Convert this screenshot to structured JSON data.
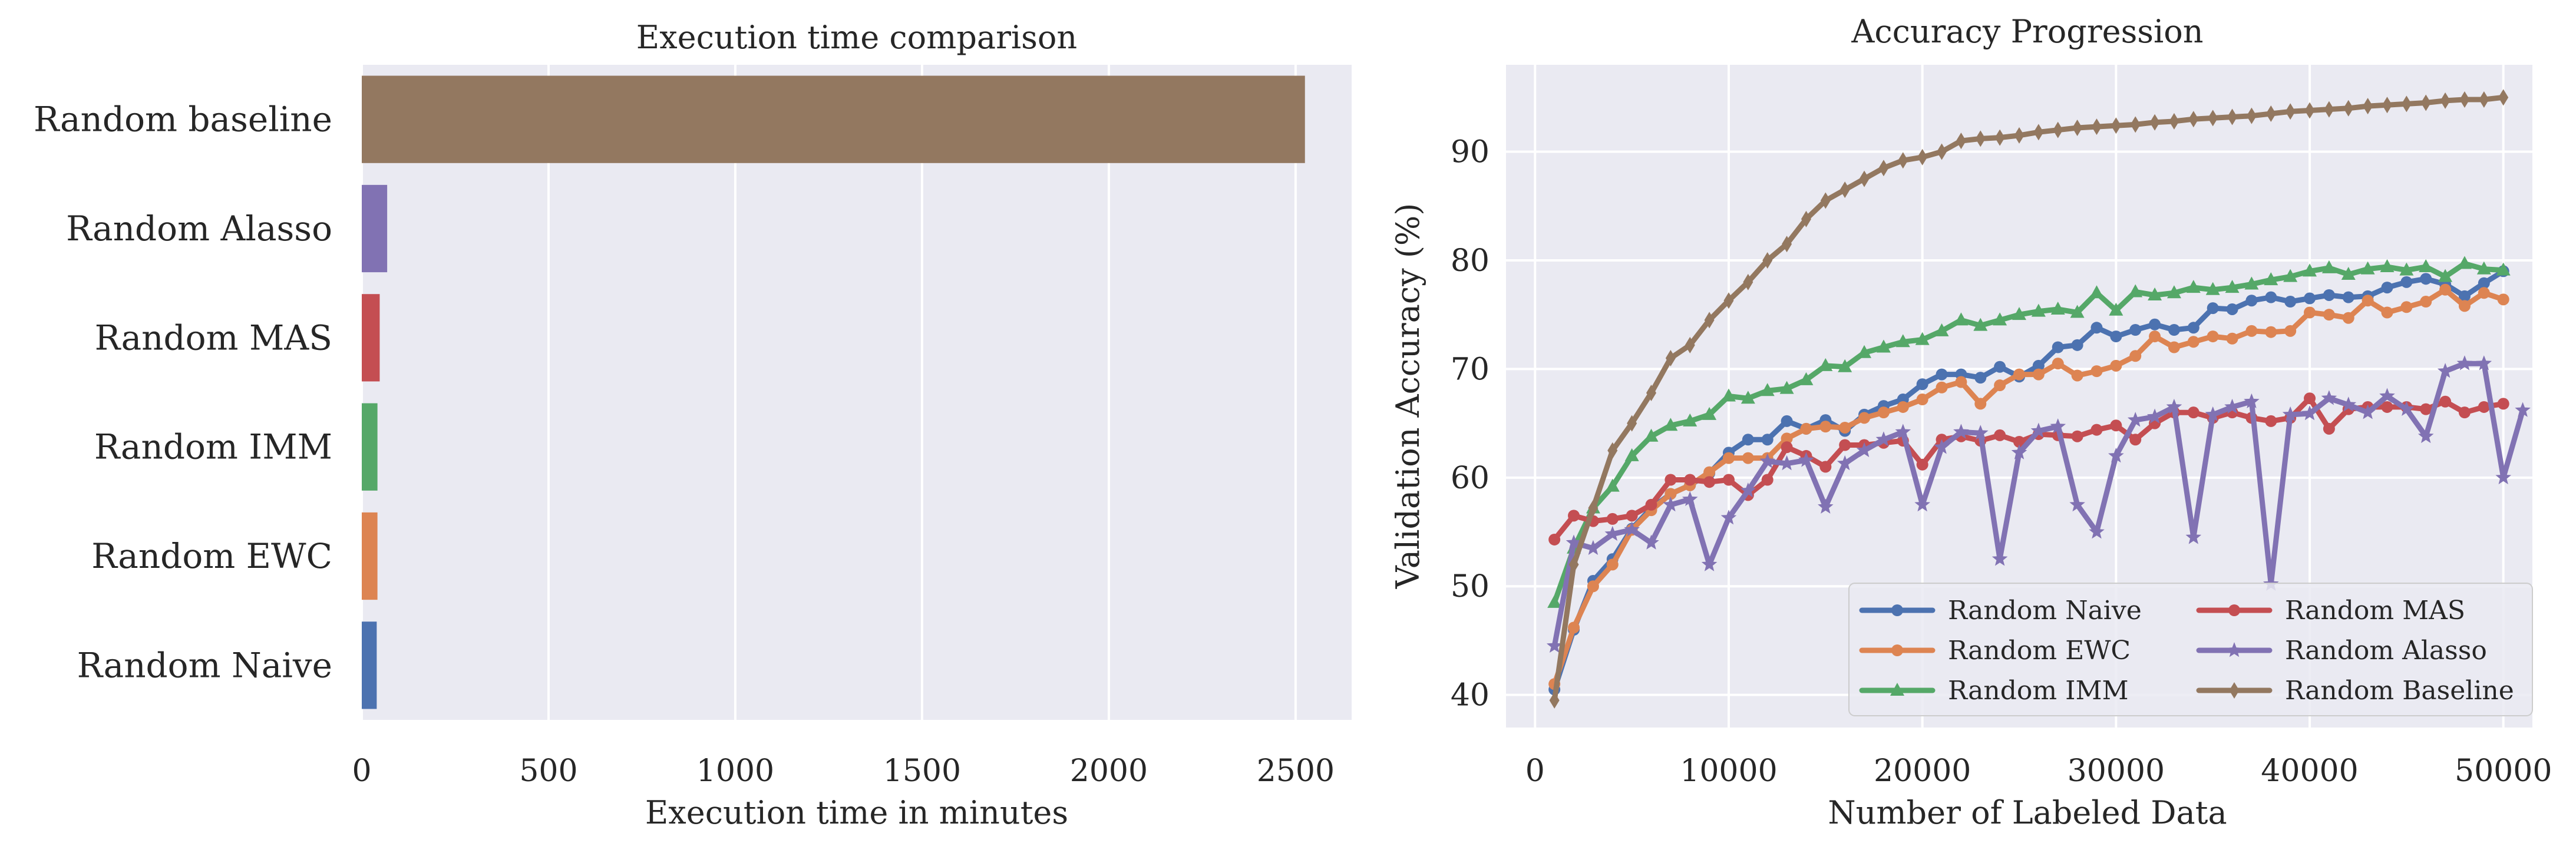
{
  "chart_data": [
    {
      "type": "bar",
      "orientation": "horizontal",
      "title": "Execution time comparison",
      "xlabel": "Execution time in minutes",
      "ylabel": "",
      "xlim": [
        0,
        2650
      ],
      "xticks": [
        0,
        500,
        1000,
        1500,
        2000,
        2500
      ],
      "categories": [
        "Random baseline",
        "Random Alasso",
        "Random MAS",
        "Random IMM",
        "Random EWC",
        "Random Naive"
      ],
      "values": [
        2525,
        68,
        48,
        42,
        42,
        40
      ],
      "colors": [
        "#937860",
        "#8172b3",
        "#c44e52",
        "#55a868",
        "#dd8452",
        "#4c72b0"
      ],
      "grid": true,
      "background": "#eaeaf2"
    },
    {
      "type": "line",
      "title": "Accuracy Progression",
      "xlabel": "Number of Labeled Data",
      "ylabel": "Validation Accuracy (%)",
      "xlim": [
        -1500,
        51500
      ],
      "ylim": [
        37,
        98
      ],
      "xticks": [
        0,
        10000,
        20000,
        30000,
        40000,
        50000
      ],
      "yticks": [
        40,
        50,
        60,
        70,
        80,
        90
      ],
      "legend": "lower-right",
      "grid": true,
      "background": "#eaeaf2",
      "x_start": 1000,
      "x_step": 1000,
      "series": [
        {
          "name": "Random Naive",
          "color": "#4c72b0",
          "marker": "circle",
          "values": [
            40.5,
            46,
            50.5,
            52.5,
            55.3,
            57.2,
            58.5,
            59.3,
            60.4,
            62.3,
            63.5,
            63.5,
            65.2,
            64.5,
            65.3,
            64.3,
            65.8,
            66.6,
            67.2,
            68.6,
            69.5,
            69.5,
            69.2,
            70.2,
            69.3,
            70.3,
            72.0,
            72.2,
            73.8,
            73.0,
            73.6,
            74.1,
            73.6,
            73.8,
            75.6,
            75.5,
            76.3,
            76.6,
            76.2,
            76.5,
            76.8,
            76.6,
            76.7,
            77.5,
            78.0,
            78.3,
            77.8,
            76.7,
            77.9,
            79.0
          ]
        },
        {
          "name": "Random EWC",
          "color": "#dd8452",
          "marker": "circle",
          "values": [
            41,
            46.2,
            50,
            52,
            55.2,
            57,
            58.5,
            59.3,
            60.5,
            61.8,
            61.8,
            61.8,
            63.6,
            64.5,
            64.7,
            64.6,
            65.5,
            66,
            66.5,
            67.2,
            68.3,
            68.8,
            66.8,
            68.5,
            69.5,
            69.5,
            70.5,
            69.4,
            69.8,
            70.3,
            71.2,
            73.0,
            72.0,
            72.5,
            73.0,
            72.8,
            73.5,
            73.4,
            73.5,
            75.2,
            75.0,
            74.7,
            76.3,
            75.2,
            75.7,
            76.2,
            77.3,
            75.8,
            77.0,
            76.4
          ]
        },
        {
          "name": "Random IMM",
          "color": "#55a868",
          "marker": "triangle",
          "values": [
            48.5,
            53.5,
            57.2,
            59.2,
            62.0,
            63.8,
            64.8,
            65.2,
            65.8,
            67.5,
            67.3,
            68.0,
            68.2,
            69.0,
            70.3,
            70.2,
            71.5,
            72.0,
            72.5,
            72.7,
            73.5,
            74.5,
            74.0,
            74.5,
            75.0,
            75.3,
            75.5,
            75.2,
            77.0,
            75.4,
            77.1,
            76.8,
            77.0,
            77.5,
            77.3,
            77.5,
            77.8,
            78.2,
            78.5,
            79.0,
            79.3,
            78.7,
            79.2,
            79.4,
            79.1,
            79.4,
            78.5,
            79.7,
            79.2,
            79.1
          ]
        },
        {
          "name": "Random MAS",
          "color": "#c44e52",
          "marker": "circle",
          "values": [
            54.3,
            56.5,
            56.0,
            56.2,
            56.5,
            57.5,
            59.8,
            59.8,
            59.6,
            59.8,
            58.4,
            59.8,
            62.8,
            62.0,
            61.0,
            63.0,
            63.0,
            63.2,
            63.4,
            61.2,
            63.5,
            63.8,
            63.4,
            63.9,
            63.3,
            64.0,
            63.9,
            63.8,
            64.4,
            64.8,
            63.5,
            65.0,
            66.0,
            66.0,
            65.5,
            66.0,
            65.5,
            65.2,
            65.5,
            67.3,
            64.5,
            66.3,
            66.5,
            66.5,
            66.5,
            66.3,
            67.0,
            66.0,
            66.5,
            66.8
          ]
        },
        {
          "name": "Random Alasso",
          "color": "#8172b3",
          "marker": "star",
          "values": [
            44.5,
            54,
            53.5,
            54.8,
            55.2,
            54.0,
            57.5,
            58.0,
            52.0,
            56.3,
            58.8,
            61.5,
            61.3,
            61.6,
            57.3,
            61.3,
            62.5,
            63.5,
            64.2,
            57.5,
            62.8,
            64.2,
            64.1,
            52.5,
            62.3,
            64.3,
            64.7,
            57.5,
            55.0,
            62.0,
            65.3,
            65.6,
            66.5,
            54.5,
            65.8,
            66.5,
            67.0,
            50.2,
            65.8,
            65.9,
            67.3,
            66.7,
            66.0,
            67.5,
            66.3,
            63.8,
            69.8,
            70.5,
            70.5,
            60.0,
            66.2
          ]
        },
        {
          "name": "Random Baseline",
          "color": "#937860",
          "marker": "diamond",
          "values": [
            39.5,
            52.0,
            57.2,
            62.5,
            65.0,
            67.8,
            71.0,
            72.2,
            74.5,
            76.3,
            78.0,
            80.0,
            81.5,
            83.8,
            85.5,
            86.5,
            87.5,
            88.5,
            89.2,
            89.5,
            90.0,
            91.0,
            91.2,
            91.3,
            91.5,
            91.8,
            92.0,
            92.2,
            92.3,
            92.4,
            92.5,
            92.7,
            92.8,
            93.0,
            93.1,
            93.2,
            93.3,
            93.5,
            93.7,
            93.8,
            93.9,
            94.0,
            94.2,
            94.3,
            94.4,
            94.5,
            94.7,
            94.8,
            94.8,
            95.0
          ]
        }
      ]
    }
  ]
}
